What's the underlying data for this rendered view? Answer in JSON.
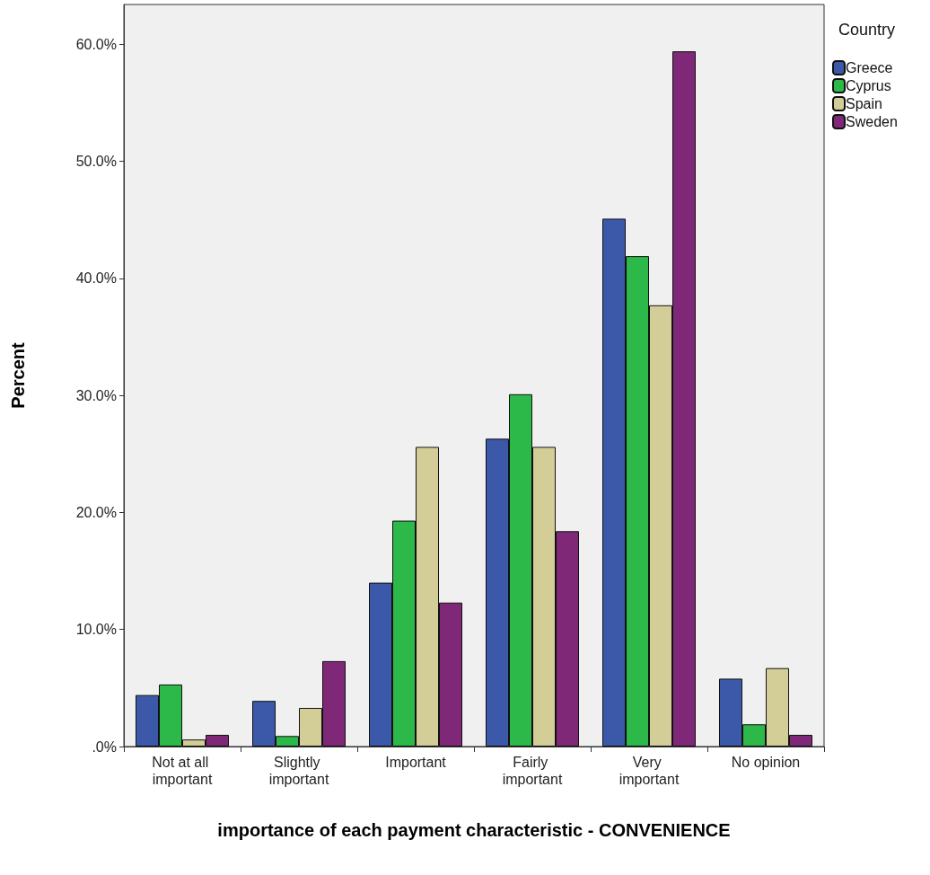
{
  "chart_data": {
    "type": "bar",
    "xlabel": "importance of each payment characteristic - CONVENIENCE",
    "ylabel": "Percent",
    "legend_title": "Country",
    "categories": [
      "Not at all important",
      "Slightly important",
      "Important",
      "Fairly important",
      "Very important",
      "No opinion"
    ],
    "series": [
      {
        "name": "Greece",
        "color": "#3c58a8",
        "values": [
          4.4,
          3.9,
          14.0,
          26.3,
          45.1,
          5.8
        ]
      },
      {
        "name": "Cyprus",
        "color": "#2db84a",
        "values": [
          5.3,
          0.9,
          19.3,
          30.1,
          41.9,
          1.9
        ]
      },
      {
        "name": "Spain",
        "color": "#d3ce97",
        "values": [
          0.6,
          3.3,
          25.6,
          25.6,
          37.7,
          6.7
        ]
      },
      {
        "name": "Sweden",
        "color": "#7e2877",
        "values": [
          1.0,
          7.3,
          12.3,
          18.4,
          59.4,
          1.0
        ]
      }
    ],
    "ylim": [
      0,
      63.4
    ],
    "yticks": [
      {
        "value": 0,
        "label": ".0%"
      },
      {
        "value": 10,
        "label": "10.0%"
      },
      {
        "value": 20,
        "label": "20.0%"
      },
      {
        "value": 30,
        "label": "30.0%"
      },
      {
        "value": 40,
        "label": "40.0%"
      },
      {
        "value": 50,
        "label": "50.0%"
      },
      {
        "value": 60,
        "label": "60.0%"
      }
    ],
    "grid": false,
    "legend": "top right"
  }
}
